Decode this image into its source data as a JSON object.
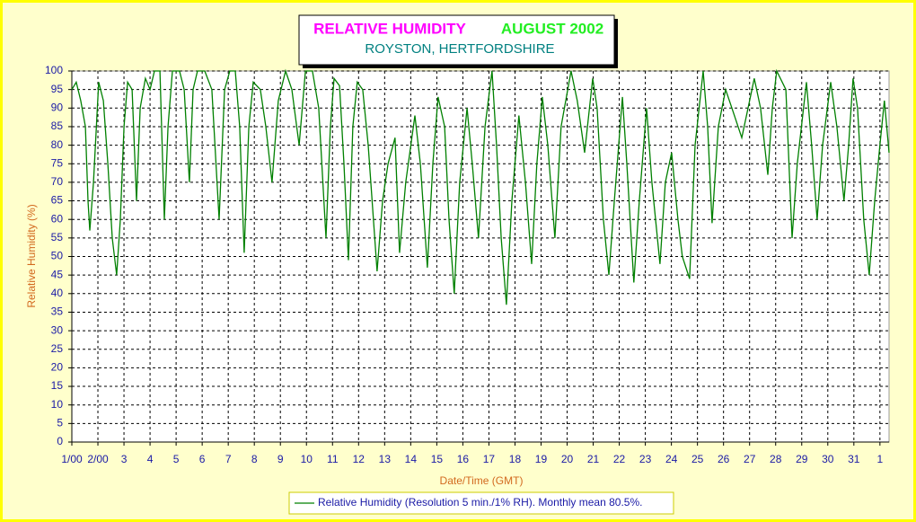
{
  "chart_data": {
    "type": "line",
    "title": "RELATIVE HUMIDITY",
    "title_period": "AUGUST 2002",
    "subtitle": "ROYSTON, HERTFORDSHIRE",
    "x_label": "Date/Time (GMT)",
    "y_label": "Relative Humidity (%)",
    "x": [
      1.0,
      1.17,
      1.34,
      1.52,
      1.62,
      1.69,
      1.83,
      2.03,
      2.21,
      2.38,
      2.55,
      2.72,
      2.86,
      3.0,
      3.14,
      3.31,
      3.48,
      3.62,
      3.82,
      4.0,
      4.17,
      4.38,
      4.55,
      4.69,
      4.86,
      5.13,
      5.31,
      5.51,
      5.65,
      5.82,
      6.1,
      6.37,
      6.65,
      6.86,
      7.06,
      7.27,
      7.44,
      7.61,
      7.79,
      7.96,
      8.23,
      8.44,
      8.68,
      8.92,
      9.2,
      9.44,
      9.72,
      9.96,
      10.23,
      10.47,
      10.75,
      10.92,
      11.06,
      11.27,
      11.44,
      11.61,
      11.78,
      11.95,
      12.16,
      12.37,
      12.71,
      12.92,
      13.13,
      13.4,
      13.57,
      13.81,
      14.16,
      14.37,
      14.64,
      14.85,
      15.05,
      15.3,
      15.47,
      15.67,
      15.88,
      16.16,
      16.36,
      16.6,
      16.85,
      17.12,
      17.29,
      17.47,
      17.67,
      17.88,
      18.15,
      18.4,
      18.64,
      18.84,
      19.05,
      19.26,
      19.53,
      19.77,
      20.15,
      20.39,
      20.67,
      20.98,
      21.15,
      21.39,
      21.6,
      21.81,
      22.12,
      22.29,
      22.56,
      22.77,
      23.05,
      23.25,
      23.56,
      23.77,
      24.01,
      24.25,
      24.42,
      24.7,
      24.91,
      25.22,
      25.39,
      25.56,
      25.8,
      26.08,
      26.32,
      26.7,
      26.94,
      27.18,
      27.42,
      27.7,
      27.87,
      28.04,
      28.39,
      28.63,
      28.83,
      29.18,
      29.38,
      29.59,
      29.8,
      30.11,
      30.35,
      30.62,
      30.8,
      30.97,
      31.14,
      31.38,
      31.59,
      31.8,
      32.0,
      32.17,
      32.35
    ],
    "series": [
      {
        "name": "Relative Humidity (Resolution 5 min./1% RH). Monthly mean 80.5%.",
        "color": "#008000",
        "values": [
          95,
          97,
          92,
          85,
          65,
          57,
          70,
          97,
          92,
          75,
          55,
          45,
          60,
          85,
          97,
          95,
          65,
          90,
          98,
          95,
          100,
          100,
          60,
          85,
          100,
          100,
          95,
          70,
          95,
          100,
          100,
          95,
          60,
          95,
          100,
          100,
          85,
          51,
          85,
          97,
          95,
          85,
          70,
          92,
          100,
          95,
          80,
          100,
          100,
          90,
          55,
          85,
          98,
          96,
          75,
          49,
          85,
          97,
          95,
          80,
          46,
          65,
          75,
          82,
          51,
          70,
          88,
          75,
          47,
          75,
          93,
          85,
          60,
          40,
          70,
          90,
          75,
          55,
          85,
          100,
          80,
          55,
          37,
          65,
          88,
          70,
          48,
          75,
          93,
          80,
          55,
          85,
          100,
          92,
          78,
          98,
          90,
          60,
          45,
          65,
          93,
          75,
          43,
          65,
          90,
          70,
          48,
          70,
          78,
          60,
          50,
          44,
          80,
          100,
          85,
          59,
          85,
          95,
          90,
          82,
          90,
          98,
          90,
          72,
          90,
          100,
          95,
          55,
          75,
          97,
          80,
          60,
          80,
          97,
          85,
          65,
          80,
          98,
          90,
          60,
          45,
          65,
          80,
          92,
          78
        ]
      }
    ],
    "xlim": [
      1,
      32.35
    ],
    "xticks": [
      {
        "value": 1,
        "label": "1/00"
      },
      {
        "value": 2,
        "label": "2/00"
      },
      3,
      4,
      5,
      6,
      7,
      8,
      9,
      10,
      11,
      12,
      13,
      14,
      15,
      16,
      17,
      18,
      19,
      20,
      21,
      22,
      23,
      24,
      25,
      26,
      27,
      28,
      29,
      30,
      31,
      {
        "value": 32,
        "label": "1"
      }
    ],
    "ylim": [
      0,
      100
    ],
    "yticks": [
      0,
      5,
      10,
      15,
      20,
      25,
      30,
      35,
      40,
      45,
      50,
      55,
      60,
      65,
      70,
      75,
      80,
      85,
      90,
      95,
      100
    ],
    "grid": true
  }
}
